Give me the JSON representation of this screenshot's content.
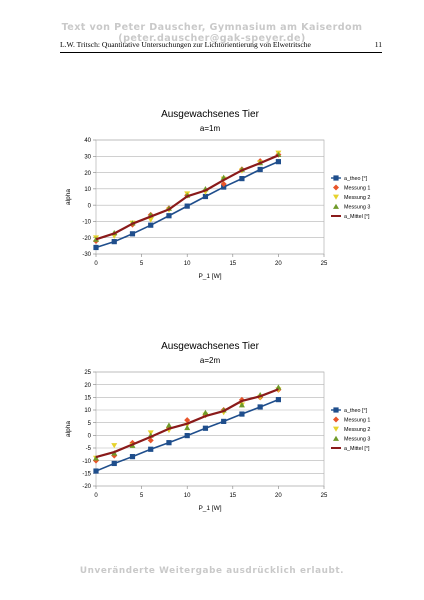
{
  "page": {
    "top_banner": "Text von Peter Dauscher, Gymnasium am Kaiserdom  (peter.dauscher@gak-speyer.de)",
    "header_title": "L.W. Tritsch: Quantitative Untersuchungen zur Lichtorientierung von Elwetritsche",
    "page_number": "11",
    "bottom_banner": "Unveränderte Weitergabe ausdrücklich erlaubt."
  },
  "colors": {
    "a_theo": "#1f4e8c",
    "messung_1": "#e8552a",
    "messung_2": "#e6d32c",
    "messung_3": "#6f9a2a",
    "a_mittel": "#8a1a1a"
  },
  "chart_data": [
    {
      "type": "line",
      "title": "Ausgewachsenes Tier",
      "subtitle": "a=1m",
      "xlabel": "P_1 [W]",
      "ylabel": "alpha",
      "xlim": [
        0,
        25
      ],
      "ylim": [
        -30,
        40
      ],
      "xticks": [
        0,
        5,
        10,
        15,
        20,
        25
      ],
      "yticks": [
        -30,
        -20,
        -10,
        0,
        10,
        20,
        30,
        40
      ],
      "grid": "horizontal",
      "legend_position": "right",
      "x": [
        0,
        2,
        4,
        6,
        8,
        10,
        12,
        14,
        16,
        18,
        20
      ],
      "series": [
        {
          "name": "a_theo [°]",
          "marker": "square",
          "values": [
            -26,
            -22.4,
            -17.6,
            -12.3,
            -6.5,
            -0.6,
            5.3,
            11.1,
            16.3,
            21.9,
            26.7
          ]
        },
        {
          "name": "Messung 1",
          "marker": "diamond",
          "values": [
            -22,
            -18,
            -12,
            -6,
            -2,
            6,
            9,
            13,
            22,
            27,
            31
          ]
        },
        {
          "name": "Messung 2",
          "marker": "triangle-down",
          "values": [
            -20,
            -19,
            -11,
            -9,
            -3,
            7,
            8,
            16,
            21,
            26,
            32
          ]
        },
        {
          "name": "Messung 3",
          "marker": "triangle-up",
          "values": [
            -21,
            -17,
            -11,
            -6,
            -2,
            6,
            10,
            17,
            22,
            26,
            31
          ]
        },
        {
          "name": "a_Mittel [°]",
          "marker": "line",
          "values": [
            -21,
            -17.4,
            -11.4,
            -7,
            -2.6,
            5.4,
            9,
            15.4,
            21.4,
            25.8,
            30.6
          ]
        }
      ]
    },
    {
      "type": "line",
      "title": "Ausgewachsenes Tier",
      "subtitle": "a=2m",
      "xlabel": "P_1 [W]",
      "ylabel": "alpha",
      "xlim": [
        0,
        25
      ],
      "ylim": [
        -20,
        25
      ],
      "xticks": [
        0,
        5,
        10,
        15,
        20,
        25
      ],
      "yticks": [
        -20,
        -15,
        -10,
        -5,
        0,
        5,
        10,
        15,
        20,
        25
      ],
      "grid": "horizontal",
      "legend_position": "right",
      "x": [
        0,
        2,
        4,
        6,
        8,
        10,
        12,
        14,
        16,
        18,
        20
      ],
      "series": [
        {
          "name": "a_theo [°]",
          "marker": "square",
          "values": [
            -14.1,
            -11.1,
            -8.4,
            -5.5,
            -2.9,
            -0.1,
            2.8,
            5.5,
            8.4,
            11.2,
            14.1
          ]
        },
        {
          "name": "Messung 1",
          "marker": "diamond",
          "values": [
            -10,
            -8,
            -3,
            -2,
            3,
            6,
            8,
            10,
            14,
            15,
            18
          ]
        },
        {
          "name": "Messung 2",
          "marker": "triangle-down",
          "values": [
            -9,
            -4,
            -4,
            1,
            2,
            4,
            8,
            9,
            12,
            15,
            18
          ]
        },
        {
          "name": "Messung 3",
          "marker": "triangle-up",
          "values": [
            -9,
            -7,
            -4,
            0,
            4,
            3,
            9,
            10,
            12,
            16,
            19
          ]
        },
        {
          "name": "a_Mittel [°]",
          "marker": "line",
          "values": [
            -8.6,
            -6.6,
            -3.6,
            -0.6,
            2.6,
            4.6,
            7.6,
            9.6,
            13.6,
            15.4,
            18.2
          ]
        }
      ]
    }
  ]
}
